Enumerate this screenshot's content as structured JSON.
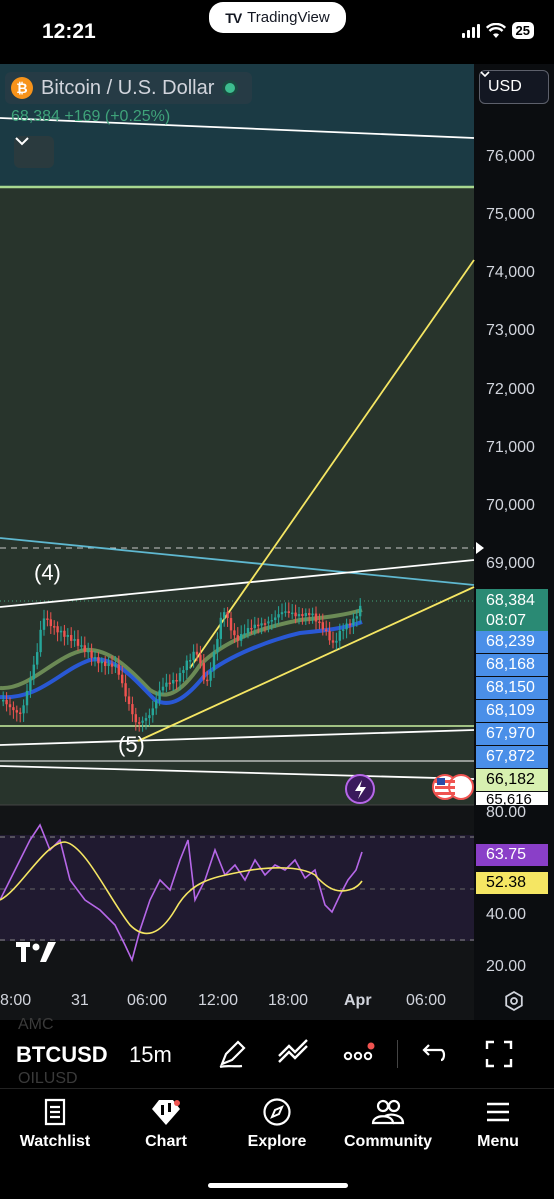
{
  "status": {
    "time": "12:21",
    "app_pill": "TradingView",
    "battery": "25"
  },
  "header": {
    "symbol": "Bitcoin / U.S. Dollar",
    "quote": "68,384 +169 (+0.25%)",
    "currency": "USD"
  },
  "price_axis": [
    "76,000",
    "75,000",
    "74,000",
    "73,000",
    "72,000",
    "71,000",
    "70,000",
    "69,000"
  ],
  "price_tags": {
    "last": "68,384",
    "countdown": "08:07",
    "ma1": "68,239",
    "ma2": "68,168",
    "ma3": "68,150",
    "ma4": "68,109",
    "ma5": "67,970",
    "ma6": "67,872",
    "level1": "66,182",
    "level2": "65,616"
  },
  "waves": {
    "w4": "(4)",
    "w5": "(5)"
  },
  "rsi": {
    "axis": [
      "80.00",
      "40.00",
      "20.00"
    ],
    "value": "63.75",
    "ma": "52.38"
  },
  "time_axis": [
    "8:00",
    "31",
    "06:00",
    "12:00",
    "18:00",
    "Apr",
    "06:00"
  ],
  "toolbar": {
    "ticker": "BTCUSD",
    "interval": "15m",
    "ghost_top": "AMC",
    "ghost_bottom": "OILUSD"
  },
  "nav": {
    "watchlist": "Watchlist",
    "chart": "Chart",
    "explore": "Explore",
    "community": "Community",
    "menu": "Menu"
  },
  "colors": {
    "up": "#26a69a",
    "down": "#ef5350",
    "ma_blue": "#2962ff",
    "rsi": "#b667e8",
    "yellow": "#f5e663",
    "cyan": "#5fb8d0",
    "tag_blue": "#4a8fe8"
  }
}
